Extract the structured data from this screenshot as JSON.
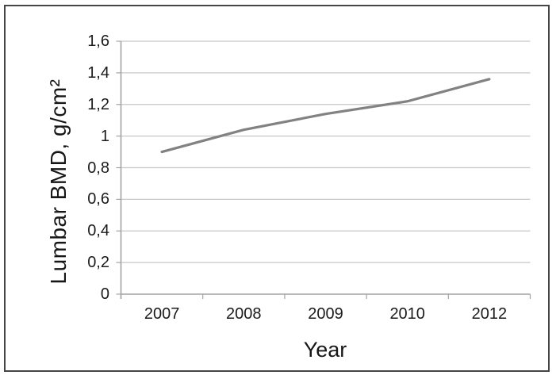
{
  "chart_data": {
    "type": "line",
    "title": "",
    "categories": [
      "2007",
      "2008",
      "2009",
      "2010",
      "2012"
    ],
    "series": [
      {
        "name": "Lumbar BMD",
        "values": [
          0.9,
          1.04,
          1.14,
          1.22,
          1.36
        ]
      }
    ],
    "xlabel": "Year",
    "ylabel": "Lumbar BMD, g/cm²",
    "y_ticks": [
      "1,6",
      "1,4",
      "1,2",
      "1",
      "0,8",
      "0,6",
      "0,4",
      "0,2",
      "0"
    ],
    "y_tick_values": [
      1.6,
      1.4,
      1.2,
      1.0,
      0.8,
      0.6,
      0.4,
      0.2,
      0
    ],
    "ylim": [
      0,
      1.6
    ],
    "decimal_separator": ",",
    "grid": true,
    "legend": "none",
    "markers": "none",
    "line_color": "#828282",
    "gridline_color": "#c7c7c7",
    "axis_color": "#a3a3a3",
    "text_color": "#1b1b1b",
    "frame_color": "#454545"
  }
}
